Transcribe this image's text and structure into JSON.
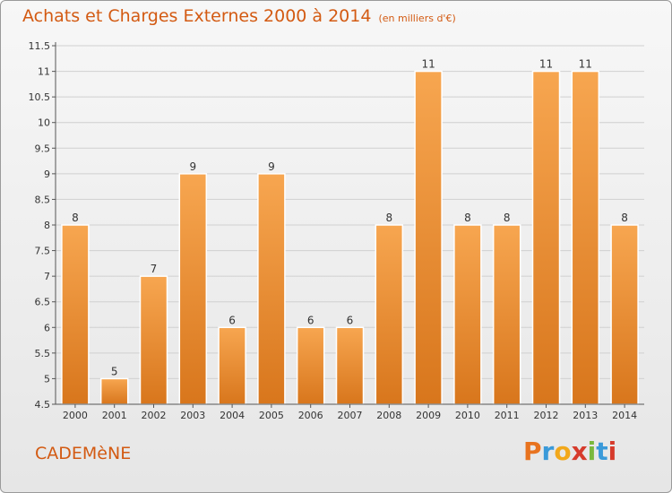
{
  "header": {
    "title": "Achats et Charges Externes 2000 à 2014",
    "subtitle": "(en milliers d'€)"
  },
  "footer": {
    "town": "CADEMèNE",
    "logo": {
      "letters": [
        "P",
        "r",
        "o",
        "x",
        "i",
        "t",
        "i"
      ],
      "colors": [
        "#e8731f",
        "#3a9ad9",
        "#f2a81b",
        "#d63b2c",
        "#7ab83c",
        "#3a9ad9",
        "#d63b2c"
      ]
    }
  },
  "chart_data": {
    "type": "bar",
    "categories": [
      "2000",
      "2001",
      "2002",
      "2003",
      "2004",
      "2005",
      "2006",
      "2007",
      "2008",
      "2009",
      "2010",
      "2011",
      "2012",
      "2013",
      "2014"
    ],
    "values": [
      8,
      5,
      7,
      9,
      6,
      9,
      6,
      6,
      8,
      11,
      8,
      8,
      11,
      11,
      8
    ],
    "data_labels": [
      "8",
      "5",
      "7",
      "9",
      "6",
      "9",
      "6",
      "6",
      "8",
      "11",
      "8",
      "8",
      "11",
      "11",
      "8"
    ],
    "title": "Achats et Charges Externes 2000 à 2014",
    "xlabel": "",
    "ylabel": "",
    "ylim": [
      4.5,
      11.5
    ],
    "yticks": [
      4.5,
      5,
      5.5,
      6,
      6.5,
      7,
      7.5,
      8,
      8.5,
      9,
      9.5,
      10,
      10.5,
      11,
      11.5
    ],
    "ytick_labels": [
      "4.5",
      "5",
      "5.5",
      "6",
      "6.5",
      "7",
      "7.5",
      "8",
      "8.5",
      "9",
      "9.5",
      "10",
      "10.5",
      "11",
      "11.5"
    ],
    "grid": true,
    "colors": {
      "bar_top": "#f7a650",
      "bar_bottom": "#d8761c",
      "grid": "#d0d0d0",
      "axis": "#555555",
      "text": "#333333"
    }
  }
}
